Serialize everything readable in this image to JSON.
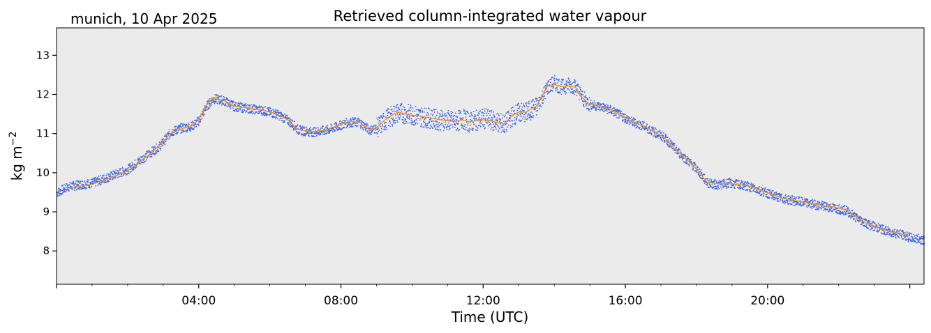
{
  "chart_data": {
    "type": "line",
    "title": "Retrieved column-integrated water vapour",
    "subtitle": "munich, 10 Apr 2025",
    "xlabel": "Time (UTC)",
    "ylabel": "kg m",
    "ylabel_superscript": "−2",
    "x_unit": "hours UTC",
    "xlim": [
      0,
      24.4
    ],
    "ylim": [
      7.15,
      13.7
    ],
    "x_ticks": [
      {
        "value": 4,
        "label": "04:00"
      },
      {
        "value": 8,
        "label": "08:00"
      },
      {
        "value": 12,
        "label": "12:00"
      },
      {
        "value": 16,
        "label": "16:00"
      },
      {
        "value": 20,
        "label": "20:00"
      }
    ],
    "y_ticks": [
      8,
      9,
      10,
      11,
      12,
      13
    ],
    "grid": false,
    "background": "#ebebeb",
    "series": [
      {
        "kind": "scatter",
        "color": "#4169e1",
        "x": [
          0.0,
          0.3,
          0.6,
          1.0,
          1.3,
          1.6,
          2.0,
          2.3,
          2.6,
          2.9,
          3.2,
          3.5,
          3.8,
          4.0,
          4.2,
          4.4,
          4.7,
          5.0,
          5.4,
          5.8,
          6.2,
          6.5,
          6.8,
          7.2,
          7.6,
          7.9,
          8.2,
          8.5,
          8.8,
          9.0,
          9.3,
          9.6,
          9.9,
          10.2,
          10.5,
          10.8,
          11.0,
          11.2,
          11.4,
          11.6,
          11.8,
          12.0,
          12.2,
          12.4,
          12.6,
          12.8,
          13.0,
          13.2,
          13.5,
          13.8,
          14.0,
          14.2,
          14.4,
          14.6,
          14.8,
          15.0,
          15.3,
          15.6,
          15.9,
          16.2,
          16.5,
          16.8,
          17.1,
          17.4,
          17.7,
          18.0,
          18.3,
          18.6,
          18.9,
          19.2,
          19.5,
          19.8,
          20.1,
          20.4,
          20.7,
          21.0,
          21.3,
          21.6,
          21.9,
          22.2,
          22.5,
          22.8,
          23.1,
          23.4,
          23.7,
          24.0,
          24.4
        ],
        "y": [
          9.5,
          9.65,
          9.7,
          9.75,
          9.85,
          9.95,
          10.1,
          10.3,
          10.5,
          10.7,
          11.05,
          11.15,
          11.2,
          11.35,
          11.7,
          11.9,
          11.85,
          11.7,
          11.65,
          11.6,
          11.5,
          11.35,
          11.1,
          11.05,
          11.1,
          11.2,
          11.3,
          11.3,
          11.1,
          11.15,
          11.4,
          11.55,
          11.5,
          11.45,
          11.4,
          11.35,
          11.35,
          11.3,
          11.4,
          11.3,
          11.35,
          11.4,
          11.35,
          11.3,
          11.25,
          11.45,
          11.55,
          11.55,
          11.7,
          12.2,
          12.3,
          12.2,
          12.25,
          12.2,
          11.9,
          11.75,
          11.7,
          11.6,
          11.45,
          11.3,
          11.2,
          11.05,
          10.9,
          10.6,
          10.35,
          10.1,
          9.75,
          9.7,
          9.75,
          9.7,
          9.65,
          9.55,
          9.45,
          9.35,
          9.3,
          9.25,
          9.2,
          9.15,
          9.1,
          9.05,
          8.85,
          8.7,
          8.6,
          8.5,
          8.45,
          8.35,
          8.3
        ]
      },
      {
        "kind": "line",
        "color": "#ff8c1a",
        "x": [
          0.3,
          0.6,
          1.0,
          1.3,
          1.6,
          2.0,
          2.3,
          2.6,
          2.9,
          3.2,
          3.5,
          3.8,
          4.0,
          4.2,
          4.4,
          4.7,
          5.0,
          5.4,
          5.8,
          6.2,
          6.5,
          6.8,
          7.2,
          7.6,
          7.9,
          8.2,
          8.5,
          8.8,
          9.0,
          9.3,
          9.6,
          9.9,
          10.2,
          10.5,
          10.8,
          11.0,
          11.2,
          11.4,
          11.6,
          11.8,
          12.0,
          12.2,
          12.4,
          12.6,
          12.8,
          13.0,
          13.2,
          13.5,
          13.8,
          14.0,
          14.2,
          14.4,
          14.6,
          14.8,
          15.0,
          15.3,
          15.6,
          15.9,
          16.2,
          16.5,
          16.8,
          17.1,
          17.4,
          17.7,
          18.0,
          18.3,
          18.6,
          18.9,
          19.2,
          19.5,
          19.8,
          20.1,
          20.4,
          20.7,
          21.0,
          21.3,
          21.6,
          21.9,
          22.2,
          22.5,
          22.8,
          23.1,
          23.4,
          23.7,
          24.0
        ],
        "y": [
          9.6,
          9.65,
          9.7,
          9.8,
          9.9,
          10.05,
          10.25,
          10.45,
          10.7,
          11.0,
          11.12,
          11.2,
          11.35,
          11.7,
          11.9,
          11.85,
          11.7,
          11.65,
          11.6,
          11.5,
          11.35,
          11.1,
          11.05,
          11.1,
          11.2,
          11.3,
          11.3,
          11.1,
          11.15,
          11.4,
          11.55,
          11.48,
          11.45,
          11.4,
          11.35,
          11.33,
          11.3,
          11.35,
          11.3,
          11.33,
          11.35,
          11.33,
          11.28,
          11.25,
          11.45,
          11.55,
          11.55,
          11.7,
          12.2,
          12.25,
          12.2,
          12.22,
          12.18,
          11.9,
          11.75,
          11.7,
          11.6,
          11.45,
          11.3,
          11.2,
          11.05,
          10.9,
          10.6,
          10.35,
          10.1,
          9.75,
          9.72,
          9.72,
          9.7,
          9.65,
          9.55,
          9.45,
          9.35,
          9.3,
          9.25,
          9.2,
          9.15,
          9.12,
          9.05,
          8.85,
          8.7,
          8.6,
          8.5,
          8.45,
          8.38
        ]
      }
    ]
  }
}
